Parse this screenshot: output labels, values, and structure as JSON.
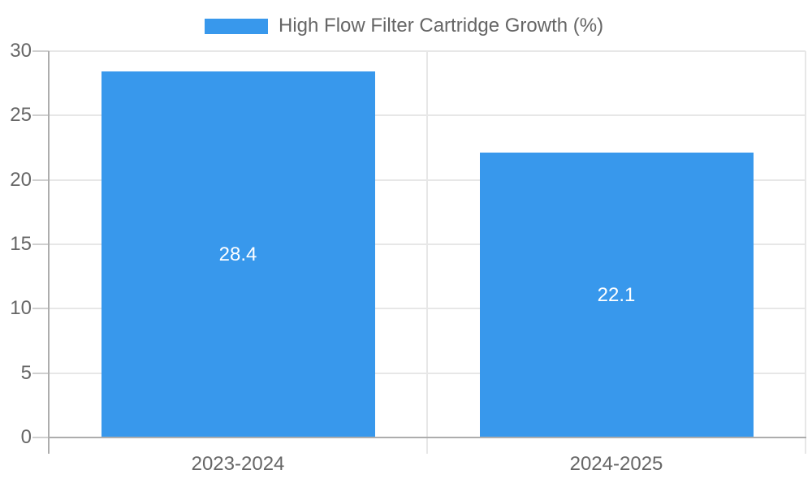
{
  "chart_data": {
    "type": "bar",
    "title": "High Flow Filter Cartridge Growth (%)",
    "legend": [
      "High Flow Filter Cartridge Growth (%)"
    ],
    "legend_position": "top-center",
    "categories": [
      "2023-2024",
      "2024-2025"
    ],
    "values": [
      28.4,
      22.1
    ],
    "data_labels": [
      "28.4",
      "22.1"
    ],
    "xlabel": "",
    "ylabel": "",
    "ylim": [
      0,
      30
    ],
    "yticks": [
      0,
      5,
      10,
      15,
      20,
      25,
      30
    ],
    "ytick_labels": [
      "0",
      "5",
      "10",
      "15",
      "20",
      "25",
      "30"
    ],
    "grid": true,
    "colors": {
      "bar": "#3898ec",
      "data_label": "#ffffff",
      "axis_text": "#666666",
      "grid_line": "#e7e7e7",
      "tick_mark": "#cfcfcf",
      "axis_line": "#adadad",
      "background": "#ffffff"
    }
  }
}
